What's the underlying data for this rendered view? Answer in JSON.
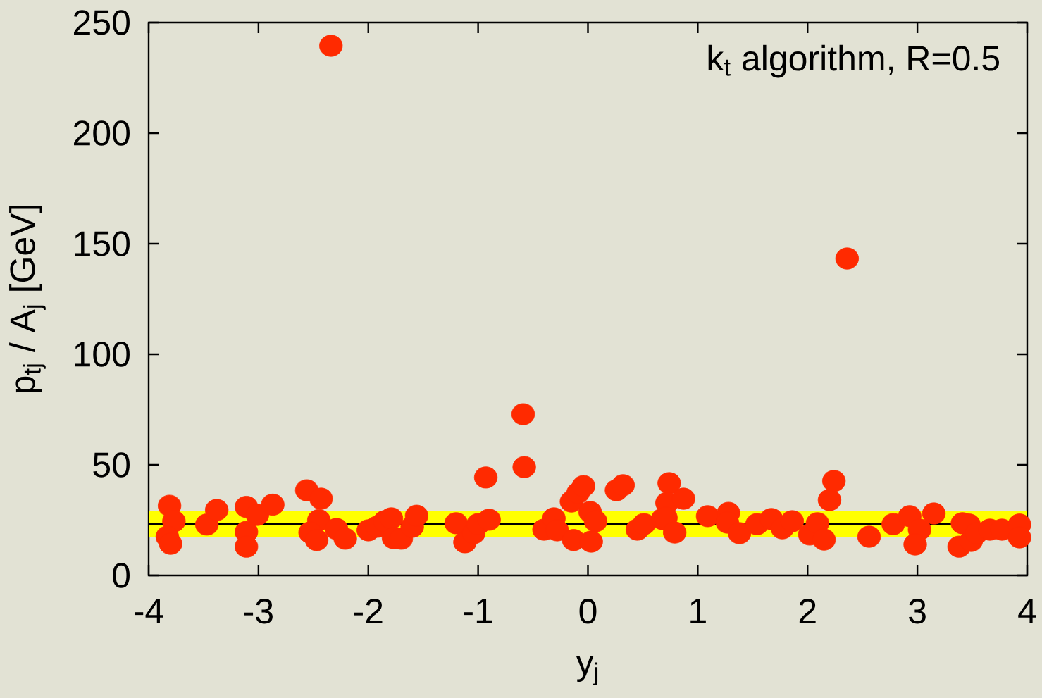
{
  "chart_data": {
    "type": "scatter",
    "xlabel": "y$_{j}$",
    "ylabel": "p$_{tj}$ / A$_{j}$ [GeV]",
    "annotations": [
      "k$_{t}$ algorithm, R=0.5"
    ],
    "xlim": [
      -4,
      4
    ],
    "ylim": [
      0,
      250
    ],
    "xticks": [
      -4,
      -3,
      -2,
      -1,
      0,
      1,
      2,
      3,
      4
    ],
    "yticks": [
      0,
      50,
      100,
      150,
      200,
      250
    ],
    "grid": false,
    "marker": "circle",
    "bands": [
      {
        "axis": "y",
        "from": 17.5,
        "to": 29.3,
        "color": "#ffff00"
      }
    ],
    "ref_lines": [
      {
        "axis": "y",
        "value": 23.2,
        "color": "#000000"
      }
    ],
    "series": [
      {
        "color": "#ff2a00",
        "x": [
          -3.81,
          -3.77,
          -3.83,
          -3.8,
          -3.47,
          -3.38,
          -3.11,
          -3.01,
          -3.11,
          -3.11,
          -2.87,
          -2.56,
          -2.43,
          -2.45,
          -2.53,
          -2.47,
          -2.34,
          -2.29,
          -2.21,
          -2.0,
          -1.92,
          -1.85,
          -1.79,
          -1.77,
          -1.7,
          -1.6,
          -1.56,
          -1.2,
          -1.12,
          -1.04,
          -1.0,
          -0.9,
          -0.93,
          -0.59,
          -0.58,
          -0.4,
          -0.31,
          -0.28,
          -0.13,
          -0.15,
          -0.09,
          -0.04,
          0.02,
          0.07,
          0.03,
          0.26,
          0.32,
          0.45,
          0.51,
          0.68,
          0.74,
          0.72,
          0.71,
          0.79,
          0.87,
          1.09,
          1.28,
          1.27,
          1.38,
          1.54,
          1.67,
          1.77,
          1.86,
          2.02,
          2.09,
          2.15,
          2.2,
          2.24,
          2.36,
          2.56,
          2.78,
          2.93,
          3.02,
          2.98,
          3.15,
          3.38,
          3.41,
          3.47,
          3.49,
          3.54,
          3.66,
          3.77,
          3.93,
          3.93
        ],
        "values": [
          31.5,
          24.5,
          17.5,
          14.3,
          23,
          29.6,
          31,
          27.4,
          19.7,
          13,
          32,
          38.5,
          34.7,
          25,
          19.4,
          16,
          239.5,
          21,
          16.6,
          20.4,
          22,
          24.5,
          25.8,
          16.9,
          16.6,
          22,
          27,
          23.6,
          15,
          19.1,
          23.2,
          25.2,
          44.3,
          72.9,
          49,
          20.7,
          25.8,
          20.4,
          16,
          33.4,
          37.3,
          40.4,
          28.7,
          24.5,
          15.3,
          38.5,
          40.8,
          20.7,
          23.2,
          25.5,
          41.7,
          32.8,
          26.1,
          19.4,
          34.7,
          26.8,
          28.3,
          23.9,
          19.1,
          23.2,
          25.5,
          21.3,
          24.5,
          18.5,
          23.6,
          16.2,
          34.1,
          42.7,
          143.3,
          17.5,
          23.2,
          26.8,
          20.7,
          14,
          28,
          13,
          23.6,
          23,
          15.6,
          19.1,
          20.7,
          20.7,
          23,
          17.2
        ]
      }
    ]
  }
}
